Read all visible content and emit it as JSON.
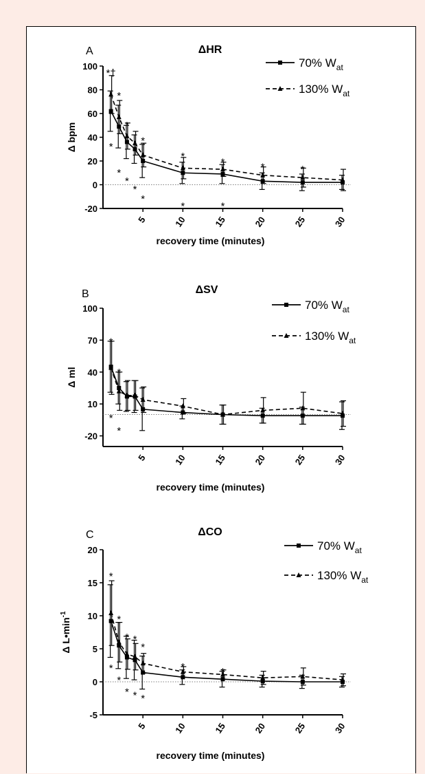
{
  "chart_data": [
    {
      "type": "line",
      "panel_letter": "A",
      "title": "ΔHR",
      "ylabel": "Δ bpm",
      "xlabel": "recovery time (minutes)",
      "yticks": [
        100,
        80,
        60,
        40,
        20,
        0,
        -20
      ],
      "ylim": [
        -20,
        100
      ],
      "xticks": [
        5,
        10,
        15,
        20,
        25,
        30
      ],
      "xlim": [
        0,
        30
      ],
      "legend_position": "top-right",
      "series": [
        {
          "name": "70% W",
          "name_sub": "at",
          "style": "solid",
          "marker": "square",
          "x": [
            1,
            2,
            3,
            4,
            5,
            10,
            15,
            20,
            25,
            30
          ],
          "y": [
            62,
            49,
            36,
            30,
            20,
            10,
            9,
            3,
            2,
            2
          ],
          "err": [
            17,
            18,
            14,
            12,
            14,
            9,
            8,
            7,
            7,
            6
          ]
        },
        {
          "name": "130% W",
          "name_sub": "at",
          "style": "dashed",
          "marker": "triangle",
          "x": [
            1,
            2,
            3,
            4,
            5,
            10,
            15,
            20,
            25,
            30
          ],
          "y": [
            76,
            57,
            41,
            35,
            25,
            14,
            13,
            8,
            6,
            4
          ],
          "err": [
            16,
            14,
            11,
            10,
            10,
            9,
            6,
            7,
            8,
            9
          ]
        }
      ],
      "annotations": [
        {
          "text": "*†",
          "x": 1,
          "y": 97
        },
        {
          "text": "*",
          "x": 2,
          "y": 78
        },
        {
          "text": "*",
          "x": 3,
          "y": 53
        },
        {
          "text": "*",
          "x": 5,
          "y": 40
        },
        {
          "text": "*",
          "x": 10,
          "y": 27
        },
        {
          "text": "*",
          "x": 15,
          "y": 22
        },
        {
          "text": "*",
          "x": 20,
          "y": 18
        },
        {
          "text": "*",
          "x": 25,
          "y": 16
        },
        {
          "text": "*",
          "x": 1,
          "y": 35
        },
        {
          "text": "*",
          "x": 2,
          "y": 13
        },
        {
          "text": "*",
          "x": 3,
          "y": 6
        },
        {
          "text": "*",
          "x": 4,
          "y": -1
        },
        {
          "text": "*",
          "x": 5,
          "y": -9
        },
        {
          "text": "*",
          "x": 10,
          "y": -15
        },
        {
          "text": "*",
          "x": 15,
          "y": -15
        }
      ]
    },
    {
      "type": "line",
      "panel_letter": "B",
      "title": "ΔSV",
      "ylabel": "Δ ml",
      "xlabel": "recovery time (minutes)",
      "yticks": [
        100,
        70,
        40,
        10,
        -20
      ],
      "ylim": [
        -30,
        100
      ],
      "xticks": [
        5,
        10,
        15,
        20,
        25,
        30
      ],
      "xlim": [
        0,
        30
      ],
      "legend_position": "top-right",
      "series": [
        {
          "name": "70% W",
          "name_sub": "at",
          "style": "solid",
          "marker": "square",
          "x": [
            1,
            2,
            3,
            4,
            5,
            10,
            15,
            20,
            25,
            30
          ],
          "y": [
            45,
            25,
            17,
            17,
            5,
            2,
            0,
            -1,
            -1,
            -1
          ],
          "err": [
            24,
            15,
            14,
            15,
            20,
            6,
            9,
            7,
            8,
            13
          ]
        },
        {
          "name": "130% W",
          "name_sub": "at",
          "style": "dashed",
          "marker": "triangle",
          "x": [
            1,
            2,
            3,
            4,
            5,
            10,
            15,
            20,
            25,
            30
          ],
          "y": [
            44,
            22,
            18,
            18,
            14,
            8,
            0,
            4,
            6,
            1
          ],
          "err": [
            25,
            18,
            14,
            14,
            12,
            7,
            9,
            12,
            15,
            12
          ]
        }
      ],
      "annotations": [
        {
          "text": "*",
          "x": 1,
          "y": 72
        },
        {
          "text": "*",
          "x": 2,
          "y": 43
        },
        {
          "text": "*",
          "x": 1,
          "y": 0
        },
        {
          "text": "*",
          "x": 2,
          "y": -12
        }
      ]
    },
    {
      "type": "line",
      "panel_letter": "C",
      "title": "ΔCO",
      "ylabel": "Δ L•min",
      "ylabel_sup": "-1",
      "xlabel": "recovery time (minutes)",
      "yticks": [
        20,
        15,
        10,
        5,
        0,
        -5
      ],
      "ylim": [
        -5,
        20
      ],
      "xticks": [
        5,
        10,
        15,
        20,
        25,
        30
      ],
      "xlim": [
        0,
        30
      ],
      "legend_position": "top-right",
      "series": [
        {
          "name": "70% W",
          "name_sub": "at",
          "style": "solid",
          "marker": "square",
          "x": [
            1,
            2,
            3,
            4,
            5,
            10,
            15,
            20,
            25,
            30
          ],
          "y": [
            9.2,
            5.5,
            3.7,
            3.3,
            1.4,
            0.7,
            0.4,
            0.1,
            0.0,
            0.0
          ],
          "err": [
            5.5,
            3.5,
            3.2,
            3.0,
            2.5,
            1.1,
            1.2,
            0.9,
            1.0,
            0.8
          ]
        },
        {
          "name": "130% W",
          "name_sub": "at",
          "style": "dashed",
          "marker": "triangle",
          "x": [
            1,
            2,
            3,
            4,
            5,
            10,
            15,
            20,
            25,
            30
          ],
          "y": [
            10.4,
            6.0,
            4.2,
            3.8,
            2.8,
            1.5,
            1.1,
            0.6,
            0.8,
            0.3
          ],
          "err": [
            4.9,
            3.0,
            2.3,
            2.0,
            1.5,
            0.8,
            0.7,
            1.0,
            1.3,
            0.9
          ]
        }
      ],
      "annotations": [
        {
          "text": "*",
          "x": 1,
          "y": 16.5
        },
        {
          "text": "*",
          "x": 2,
          "y": 10.0
        },
        {
          "text": "*",
          "x": 3,
          "y": 7.3
        },
        {
          "text": "*",
          "x": 4,
          "y": 7.0
        },
        {
          "text": "*",
          "x": 5,
          "y": 5.8
        },
        {
          "text": "*",
          "x": 10,
          "y": 2.8
        },
        {
          "text": "*",
          "x": 15,
          "y": 2.1
        },
        {
          "text": "*",
          "x": 1,
          "y": 2.6
        },
        {
          "text": "*",
          "x": 2,
          "y": 0.8
        },
        {
          "text": "*",
          "x": 3,
          "y": -1.0
        },
        {
          "text": "*",
          "x": 4,
          "y": -1.5
        },
        {
          "text": "*",
          "x": 5,
          "y": -2.0
        }
      ]
    }
  ],
  "colors": {
    "page_background": "#fdece6",
    "panel_background": "#ffffff",
    "ink": "#000000",
    "zero_line": "#555555"
  }
}
